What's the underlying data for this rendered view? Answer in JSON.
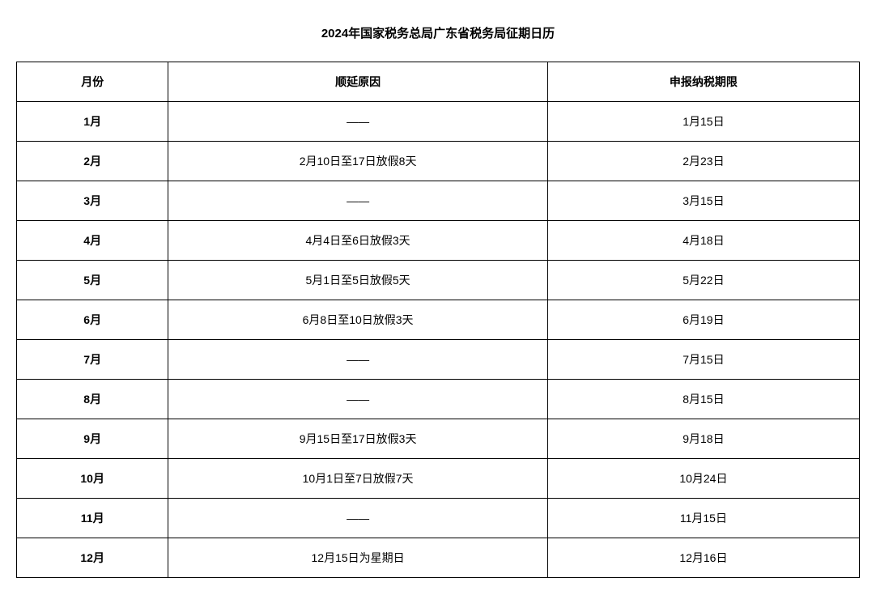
{
  "title": "2024年国家税务总局广东省税务局征期日历",
  "columns": [
    "月份",
    "顺延原因",
    "申报纳税期限"
  ],
  "rows": [
    {
      "month": "1月",
      "reason": "——",
      "deadline": "1月15日"
    },
    {
      "month": "2月",
      "reason": "2月10日至17日放假8天",
      "deadline": "2月23日"
    },
    {
      "month": "3月",
      "reason": "——",
      "deadline": "3月15日"
    },
    {
      "month": "4月",
      "reason": "4月4日至6日放假3天",
      "deadline": "4月18日"
    },
    {
      "month": "5月",
      "reason": "5月1日至5日放假5天",
      "deadline": "5月22日"
    },
    {
      "month": "6月",
      "reason": "6月8日至10日放假3天",
      "deadline": "6月19日"
    },
    {
      "month": "7月",
      "reason": "——",
      "deadline": "7月15日"
    },
    {
      "month": "8月",
      "reason": "——",
      "deadline": "8月15日"
    },
    {
      "month": "9月",
      "reason": "9月15日至17日放假3天",
      "deadline": "9月18日"
    },
    {
      "month": "10月",
      "reason": "10月1日至7日放假7天",
      "deadline": "10月24日"
    },
    {
      "month": "11月",
      "reason": "——",
      "deadline": "11月15日"
    },
    {
      "month": "12月",
      "reason": "12月15日为星期日",
      "deadline": "12月16日"
    }
  ]
}
